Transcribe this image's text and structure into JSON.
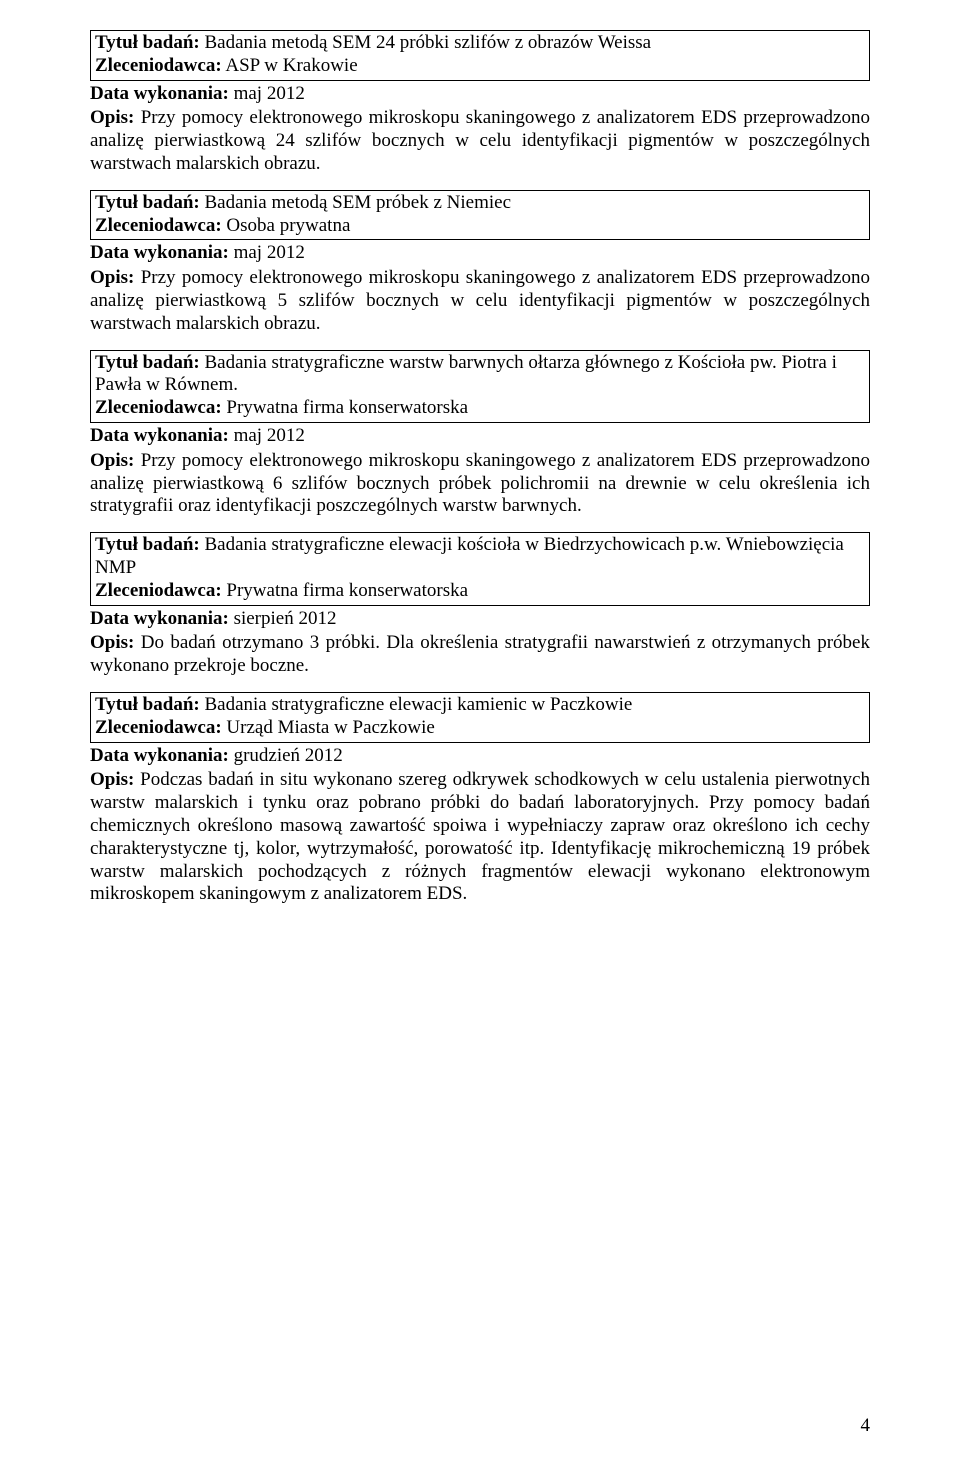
{
  "page_number": "4",
  "entries": [
    {
      "title_label": "Tytuł badań:",
      "title_text": "  Badania metodą SEM 24 próbki szlifów z obrazów Weissa",
      "client_label": "Zleceniodawca:",
      "client_text": " ASP w Krakowie",
      "date_label": "Data wykonania:",
      "date_text": " maj 2012",
      "desc_label": "Opis:",
      "desc_text": " Przy pomocy elektronowego mikroskopu skaningowego z analizatorem EDS przeprowadzono analizę pierwiastkową 24 szlifów bocznych w celu identyfikacji pigmentów w poszczególnych warstwach malarskich obrazu."
    },
    {
      "title_label": "Tytuł badań:",
      "title_text": "  Badania metodą SEM próbek z Niemiec",
      "client_label": "Zleceniodawca:",
      "client_text": " Osoba prywatna",
      "date_label": "Data wykonania:",
      "date_text": " maj 2012",
      "desc_label": "Opis:",
      "desc_text": " Przy pomocy elektronowego mikroskopu skaningowego z analizatorem EDS przeprowadzono analizę pierwiastkową 5 szlifów bocznych w celu identyfikacji pigmentów w poszczególnych warstwach malarskich obrazu."
    },
    {
      "title_label": "Tytuł badań:",
      "title_text": "  Badania stratygraficzne warstw barwnych ołtarza głównego z Kościoła pw. Piotra i Pawła w Równem.",
      "client_label": "Zleceniodawca:",
      "client_text": "  Prywatna firma konserwatorska",
      "date_label": "Data wykonania:",
      "date_text": " maj 2012",
      "desc_label": "Opis:",
      "desc_text": " Przy pomocy elektronowego mikroskopu skaningowego z analizatorem EDS przeprowadzono analizę pierwiastkową 6 szlifów bocznych próbek polichromii na drewnie w celu określenia ich stratygrafii oraz identyfikacji poszczególnych warstw barwnych."
    },
    {
      "title_label": "Tytuł badań:",
      "title_text": "  Badania stratygraficzne elewacji kościoła w Biedrzychowicach p.w. Wniebowzięcia NMP",
      "client_label": "Zleceniodawca:",
      "client_text": "  Prywatna firma konserwatorska",
      "date_label": "Data wykonania:",
      "date_text": " sierpień 2012",
      "desc_label": "Opis:",
      "desc_text": " Do badań otrzymano 3 próbki. Dla określenia stratygrafii nawarstwień z otrzymanych próbek wykonano przekroje boczne."
    },
    {
      "title_label": "Tytuł badań:",
      "title_text": "  Badania stratygraficzne elewacji kamienic w Paczkowie",
      "client_label": "Zleceniodawca:",
      "client_text": "  Urząd Miasta w Paczkowie",
      "date_label": "Data wykonania:",
      "date_text": " grudzień 2012",
      "desc_label": "Opis:",
      "desc_text": " Podczas badań in situ wykonano szereg odkrywek schodkowych w celu  ustalenia pierwotnych warstw malarskich i tynku oraz pobrano próbki do badań laboratoryjnych.  Przy pomocy badań chemicznych określono masową zawartość spoiwa i wypełniaczy zapraw oraz określono ich cechy charakterystyczne tj, kolor, wytrzymałość, porowatość itp. Identyfikację mikrochemiczną 19 próbek warstw malarskich pochodzących z różnych fragmentów elewacji wykonano elektronowym mikroskopem skaningowym z analizatorem EDS."
    }
  ]
}
